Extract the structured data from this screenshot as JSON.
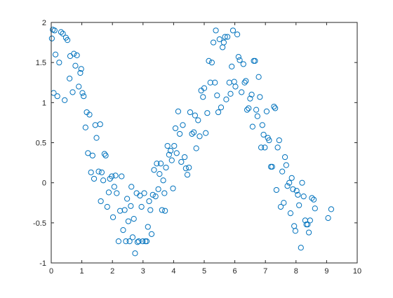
{
  "colors": {
    "marker": "#0072BD",
    "axis": "#262626",
    "background": "#ffffff"
  },
  "chart_data": {
    "type": "scatter",
    "title": "",
    "xlabel": "",
    "ylabel": "",
    "xlim": [
      0,
      10
    ],
    "ylim": [
      -1,
      2
    ],
    "xticks": [
      0,
      1,
      2,
      3,
      4,
      5,
      6,
      7,
      8,
      9,
      10
    ],
    "yticks": [
      -1,
      -0.5,
      0,
      0.5,
      1,
      1.5,
      2
    ],
    "xtick_labels": [
      "0",
      "1",
      "2",
      "3",
      "4",
      "5",
      "6",
      "7",
      "8",
      "9",
      "10"
    ],
    "ytick_labels": [
      "-1",
      "-0.5",
      "0",
      "0.5",
      "1",
      "1.5",
      "2"
    ],
    "grid": false,
    "marker": "circle-open",
    "series": [
      {
        "points": [
          [
            0.02,
            1.8
          ],
          [
            0.05,
            1.91
          ],
          [
            0.08,
            1.12
          ],
          [
            0.11,
            1.9
          ],
          [
            0.14,
            1.6
          ],
          [
            0.2,
            1.08
          ],
          [
            0.26,
            1.5
          ],
          [
            0.32,
            1.88
          ],
          [
            0.38,
            1.86
          ],
          [
            0.44,
            1.03
          ],
          [
            0.48,
            1.81
          ],
          [
            0.53,
            1.78
          ],
          [
            0.6,
            1.3
          ],
          [
            0.62,
            1.58
          ],
          [
            0.7,
            1.13
          ],
          [
            0.74,
            1.61
          ],
          [
            0.79,
            1.46
          ],
          [
            0.84,
            1.59
          ],
          [
            0.9,
            1.2
          ],
          [
            0.95,
            1.37
          ],
          [
            0.98,
            1.42
          ],
          [
            1.02,
            1.12
          ],
          [
            1.06,
            1.08
          ],
          [
            1.12,
            0.69
          ],
          [
            1.16,
            0.88
          ],
          [
            1.2,
            0.37
          ],
          [
            1.25,
            0.85
          ],
          [
            1.3,
            0.13
          ],
          [
            1.35,
            0.34
          ],
          [
            1.4,
            0.05
          ],
          [
            1.44,
            0.72
          ],
          [
            1.48,
            0.56
          ],
          [
            1.55,
            0.14
          ],
          [
            1.6,
            0.73
          ],
          [
            1.62,
            -0.23
          ],
          [
            1.65,
            0.13
          ],
          [
            1.7,
            0.03
          ],
          [
            1.74,
            0.36
          ],
          [
            1.78,
            0.34
          ],
          [
            1.83,
            -0.3
          ],
          [
            1.88,
            -0.12
          ],
          [
            1.92,
            0.05
          ],
          [
            1.98,
            0.08
          ],
          [
            2.02,
            -0.43
          ],
          [
            2.06,
            -0.05
          ],
          [
            2.1,
            0.09
          ],
          [
            2.14,
            -0.13
          ],
          [
            2.2,
            -0.73
          ],
          [
            2.25,
            -0.35
          ],
          [
            2.3,
            0.08
          ],
          [
            2.35,
            -0.59
          ],
          [
            2.4,
            -0.34
          ],
          [
            2.44,
            -0.73
          ],
          [
            2.48,
            -0.2
          ],
          [
            2.52,
            -0.48
          ],
          [
            2.56,
            -0.73
          ],
          [
            2.6,
            -0.29
          ],
          [
            2.62,
            -0.05
          ],
          [
            2.66,
            -0.68
          ],
          [
            2.7,
            -0.45
          ],
          [
            2.74,
            -0.88
          ],
          [
            2.79,
            -0.13
          ],
          [
            2.82,
            -0.74
          ],
          [
            2.86,
            -0.73
          ],
          [
            2.9,
            -0.16
          ],
          [
            2.95,
            -0.3
          ],
          [
            2.99,
            -0.73
          ],
          [
            3.04,
            -0.13
          ],
          [
            3.08,
            -0.73
          ],
          [
            3.12,
            -0.73
          ],
          [
            3.16,
            -0.55
          ],
          [
            3.2,
            -0.23
          ],
          [
            3.24,
            -0.34
          ],
          [
            3.28,
            -0.64
          ],
          [
            3.32,
            -0.15
          ],
          [
            3.36,
            0.16
          ],
          [
            3.41,
            -0.17
          ],
          [
            3.45,
            0.24
          ],
          [
            3.5,
            -0.08
          ],
          [
            3.54,
            0.11
          ],
          [
            3.58,
            0.24
          ],
          [
            3.62,
            -0.34
          ],
          [
            3.66,
            0.03
          ],
          [
            3.7,
            -0.13
          ],
          [
            3.72,
            -0.35
          ],
          [
            3.75,
            0.19
          ],
          [
            3.8,
            0.46
          ],
          [
            3.85,
            0.35
          ],
          [
            3.9,
            0.4
          ],
          [
            3.94,
            0.28
          ],
          [
            3.98,
            -0.07
          ],
          [
            4.02,
            0.46
          ],
          [
            4.06,
            0.68
          ],
          [
            4.1,
            0.37
          ],
          [
            4.15,
            0.89
          ],
          [
            4.2,
            0.61
          ],
          [
            4.25,
            0.26
          ],
          [
            4.3,
            0.72
          ],
          [
            4.36,
            0.32
          ],
          [
            4.4,
            0.18
          ],
          [
            4.45,
            0.1
          ],
          [
            4.5,
            0.19
          ],
          [
            4.54,
            0.88
          ],
          [
            4.6,
            0.61
          ],
          [
            4.66,
            0.63
          ],
          [
            4.7,
            0.84
          ],
          [
            4.74,
            0.43
          ],
          [
            4.8,
            0.78
          ],
          [
            4.85,
            0.58
          ],
          [
            4.9,
            1.15
          ],
          [
            4.96,
            1.07
          ],
          [
            5.0,
            1.18
          ],
          [
            5.05,
            0.62
          ],
          [
            5.1,
            0.87
          ],
          [
            5.15,
            1.52
          ],
          [
            5.2,
            1.25
          ],
          [
            5.25,
            1.5
          ],
          [
            5.3,
            1.75
          ],
          [
            5.35,
            1.25
          ],
          [
            5.38,
            1.9
          ],
          [
            5.42,
            1.09
          ],
          [
            5.46,
            0.88
          ],
          [
            5.5,
            1.79
          ],
          [
            5.55,
            0.94
          ],
          [
            5.6,
            1.69
          ],
          [
            5.64,
            1.75
          ],
          [
            5.68,
            1.82
          ],
          [
            5.72,
            1.04
          ],
          [
            5.76,
            1.82
          ],
          [
            5.82,
            1.25
          ],
          [
            5.86,
            1.11
          ],
          [
            5.9,
            1.45
          ],
          [
            5.94,
            1.9
          ],
          [
            5.98,
            1.26
          ],
          [
            6.02,
            1.2
          ],
          [
            6.08,
            1.85
          ],
          [
            6.12,
            1.57
          ],
          [
            6.16,
            1.53
          ],
          [
            6.22,
            1.13
          ],
          [
            6.28,
            1.48
          ],
          [
            6.32,
            1.25
          ],
          [
            6.36,
            1.27
          ],
          [
            6.4,
            0.91
          ],
          [
            6.45,
            0.93
          ],
          [
            6.5,
            1.05
          ],
          [
            6.55,
            1.1
          ],
          [
            6.58,
            0.7
          ],
          [
            6.62,
            1.52
          ],
          [
            6.66,
            1.52
          ],
          [
            6.7,
            0.91
          ],
          [
            6.74,
            0.83
          ],
          [
            6.78,
            1.32
          ],
          [
            6.82,
            1.07
          ],
          [
            6.86,
            0.44
          ],
          [
            6.9,
            0.72
          ],
          [
            6.94,
            0.6
          ],
          [
            6.98,
            0.44
          ],
          [
            7.04,
            0.89
          ],
          [
            7.08,
            0.56
          ],
          [
            7.12,
            0.53
          ],
          [
            7.18,
            0.2
          ],
          [
            7.22,
            0.2
          ],
          [
            7.28,
            0.95
          ],
          [
            7.32,
            0.93
          ],
          [
            7.36,
            -0.09
          ],
          [
            7.4,
            0.44
          ],
          [
            7.45,
            0.53
          ],
          [
            7.5,
            -0.3
          ],
          [
            7.55,
            0.14
          ],
          [
            7.6,
            -0.25
          ],
          [
            7.64,
            0.32
          ],
          [
            7.68,
            0.22
          ],
          [
            7.72,
            -0.04
          ],
          [
            7.78,
            0.0
          ],
          [
            7.82,
            -0.38
          ],
          [
            7.86,
            0.06
          ],
          [
            7.9,
            -0.08
          ],
          [
            7.94,
            -0.54
          ],
          [
            7.98,
            -0.6
          ],
          [
            8.02,
            -0.1
          ],
          [
            8.06,
            -0.15
          ],
          [
            8.1,
            -0.28
          ],
          [
            8.16,
            -0.81
          ],
          [
            8.2,
            0.0
          ],
          [
            8.25,
            -0.17
          ],
          [
            8.3,
            -0.47
          ],
          [
            8.34,
            -0.52
          ],
          [
            8.38,
            -0.52
          ],
          [
            8.42,
            -0.62
          ],
          [
            8.46,
            -0.47
          ],
          [
            8.52,
            -0.19
          ],
          [
            8.58,
            -0.21
          ],
          [
            9.05,
            -0.44
          ],
          [
            9.15,
            -0.33
          ],
          [
            8.62,
            -0.32
          ]
        ]
      }
    ]
  }
}
